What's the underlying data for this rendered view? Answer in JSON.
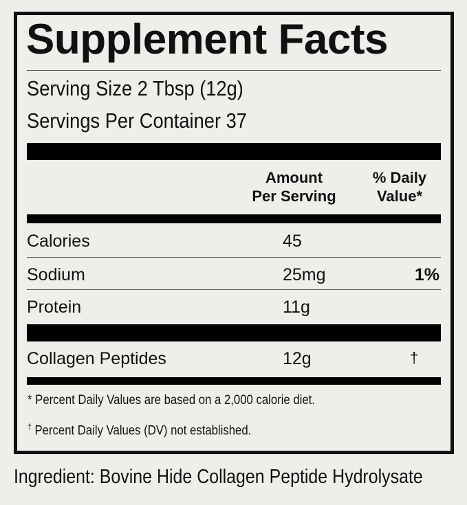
{
  "title": "Supplement Facts",
  "serving_size": "Serving Size 2 Tbsp (12g)",
  "servings_per_container": "Servings Per Container 37",
  "header": {
    "amount_line1": "Amount",
    "amount_line2": "Per Serving",
    "dv_line1": "% Daily",
    "dv_line2": "Value*"
  },
  "rows": [
    {
      "name": "Calories",
      "amount": "45",
      "dv": ""
    },
    {
      "name": "Sodium",
      "amount": "25mg",
      "dv": "1%"
    },
    {
      "name": "Protein",
      "amount": "11g",
      "dv": ""
    },
    {
      "name": "Collagen Peptides",
      "amount": "12g",
      "dv": "†"
    }
  ],
  "footnotes": [
    {
      "mark": "*",
      "text": "Percent Daily Values are based on a 2,000 calorie diet."
    },
    {
      "mark": "†",
      "text": "Percent Daily Values (DV) not established."
    }
  ],
  "ingredient": "Ingredient: Bovine Hide Collagen Peptide Hydrolysate"
}
